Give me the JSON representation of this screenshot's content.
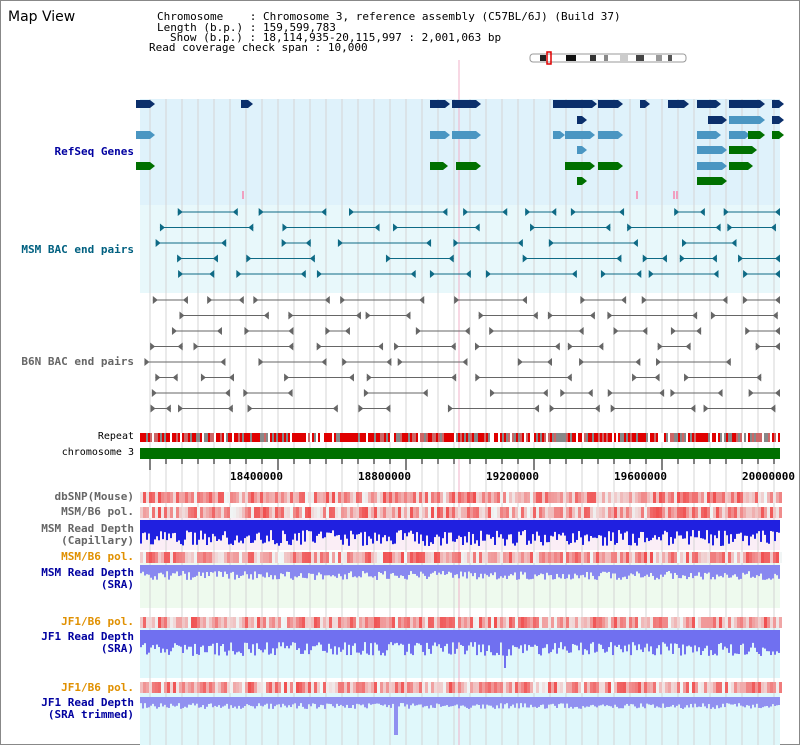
{
  "title": "Map View",
  "info": {
    "chromosome_label": "Chromosome",
    "chromosome_value": "Chromosome 3, reference assembly (C57BL/6J) (Build 37)",
    "length_label": "Length (b.p.)",
    "length_value": "159,599,783",
    "show_label": "Show (b.p.)",
    "show_value": "18,114,935-20,115,997 : 2,001,063 bp",
    "coverage_label": "Read coverage check span",
    "coverage_value": "10,000"
  },
  "tracks": {
    "refseq": "RefSeq Genes",
    "msm_bac": "MSM BAC end pairs",
    "b6n_bac": "B6N BAC end pairs",
    "repeat": "Repeat",
    "chromosome": "chromosome 3",
    "dbsnp": "dbSNP(Mouse)",
    "msm_b6_pol_1": "MSM/B6 pol.",
    "msm_read_depth_cap_1": "MSM Read Depth",
    "msm_read_depth_cap_2": "(Capillary)",
    "msm_b6_pol_2": "MSM/B6 pol.",
    "msm_read_depth_sra_1": "MSM Read Depth",
    "msm_read_depth_sra_2": "(SRA)",
    "jf1_b6_pol_1": "JF1/B6 pol.",
    "jf1_read_depth_sra_1": "JF1 Read Depth",
    "jf1_read_depth_sra_2": "(SRA)",
    "jf1_b6_pol_2": "JF1/B6 pol.",
    "jf1_read_depth_trim_1": "JF1 Read Depth",
    "jf1_read_depth_trim_2": "(SRA trimmed)"
  },
  "axis": {
    "ticks": [
      "18400000",
      "18800000",
      "19200000",
      "19600000",
      "20000000"
    ]
  },
  "colors": {
    "refseq_dark": "#0b2f6b",
    "refseq_mid": "#4a96c2",
    "refseq_green": "#007000",
    "msm_bac": "#0e6a85",
    "b6n_bac": "#666666",
    "repeat_red": "#e00000",
    "chromosome_green": "#007000",
    "msm_label": "#006080",
    "jf1_pol_label": "#e09000",
    "depth_label": "#0000a0"
  }
}
